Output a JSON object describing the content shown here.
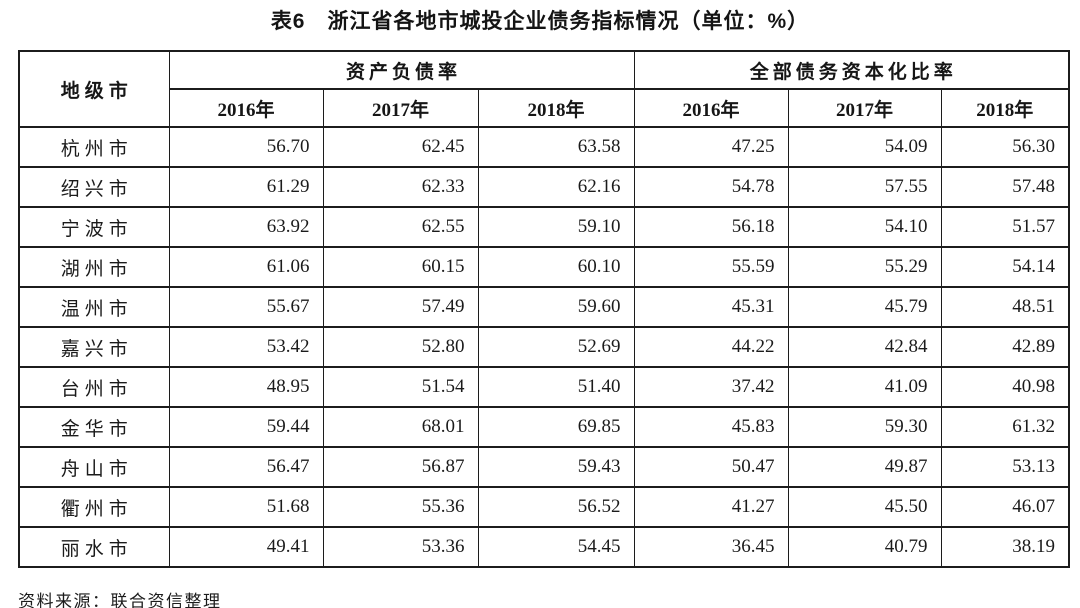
{
  "title": "表6　浙江省各地市城投企业债务指标情况（单位：%）",
  "table": {
    "corner_header": "地级市",
    "groups": [
      {
        "label": "资产负债率",
        "years": [
          "2016年",
          "2017年",
          "2018年"
        ]
      },
      {
        "label": "全部债务资本化比率",
        "years": [
          "2016年",
          "2017年",
          "2018年"
        ]
      }
    ],
    "rows": [
      {
        "city": "杭州市",
        "values": [
          "56.70",
          "62.45",
          "63.58",
          "47.25",
          "54.09",
          "56.30"
        ]
      },
      {
        "city": "绍兴市",
        "values": [
          "61.29",
          "62.33",
          "62.16",
          "54.78",
          "57.55",
          "57.48"
        ]
      },
      {
        "city": "宁波市",
        "values": [
          "63.92",
          "62.55",
          "59.10",
          "56.18",
          "54.10",
          "51.57"
        ]
      },
      {
        "city": "湖州市",
        "values": [
          "61.06",
          "60.15",
          "60.10",
          "55.59",
          "55.29",
          "54.14"
        ]
      },
      {
        "city": "温州市",
        "values": [
          "55.67",
          "57.49",
          "59.60",
          "45.31",
          "45.79",
          "48.51"
        ]
      },
      {
        "city": "嘉兴市",
        "values": [
          "53.42",
          "52.80",
          "52.69",
          "44.22",
          "42.84",
          "42.89"
        ]
      },
      {
        "city": "台州市",
        "values": [
          "48.95",
          "51.54",
          "51.40",
          "37.42",
          "41.09",
          "40.98"
        ]
      },
      {
        "city": "金华市",
        "values": [
          "59.44",
          "68.01",
          "69.85",
          "45.83",
          "59.30",
          "61.32"
        ]
      },
      {
        "city": "舟山市",
        "values": [
          "56.47",
          "56.87",
          "59.43",
          "50.47",
          "49.87",
          "53.13"
        ]
      },
      {
        "city": "衢州市",
        "values": [
          "51.68",
          "55.36",
          "56.52",
          "41.27",
          "45.50",
          "46.07"
        ]
      },
      {
        "city": "丽水市",
        "values": [
          "49.41",
          "53.36",
          "54.45",
          "36.45",
          "40.79",
          "38.19"
        ]
      }
    ]
  },
  "source_note": "资料来源：联合资信整理"
}
